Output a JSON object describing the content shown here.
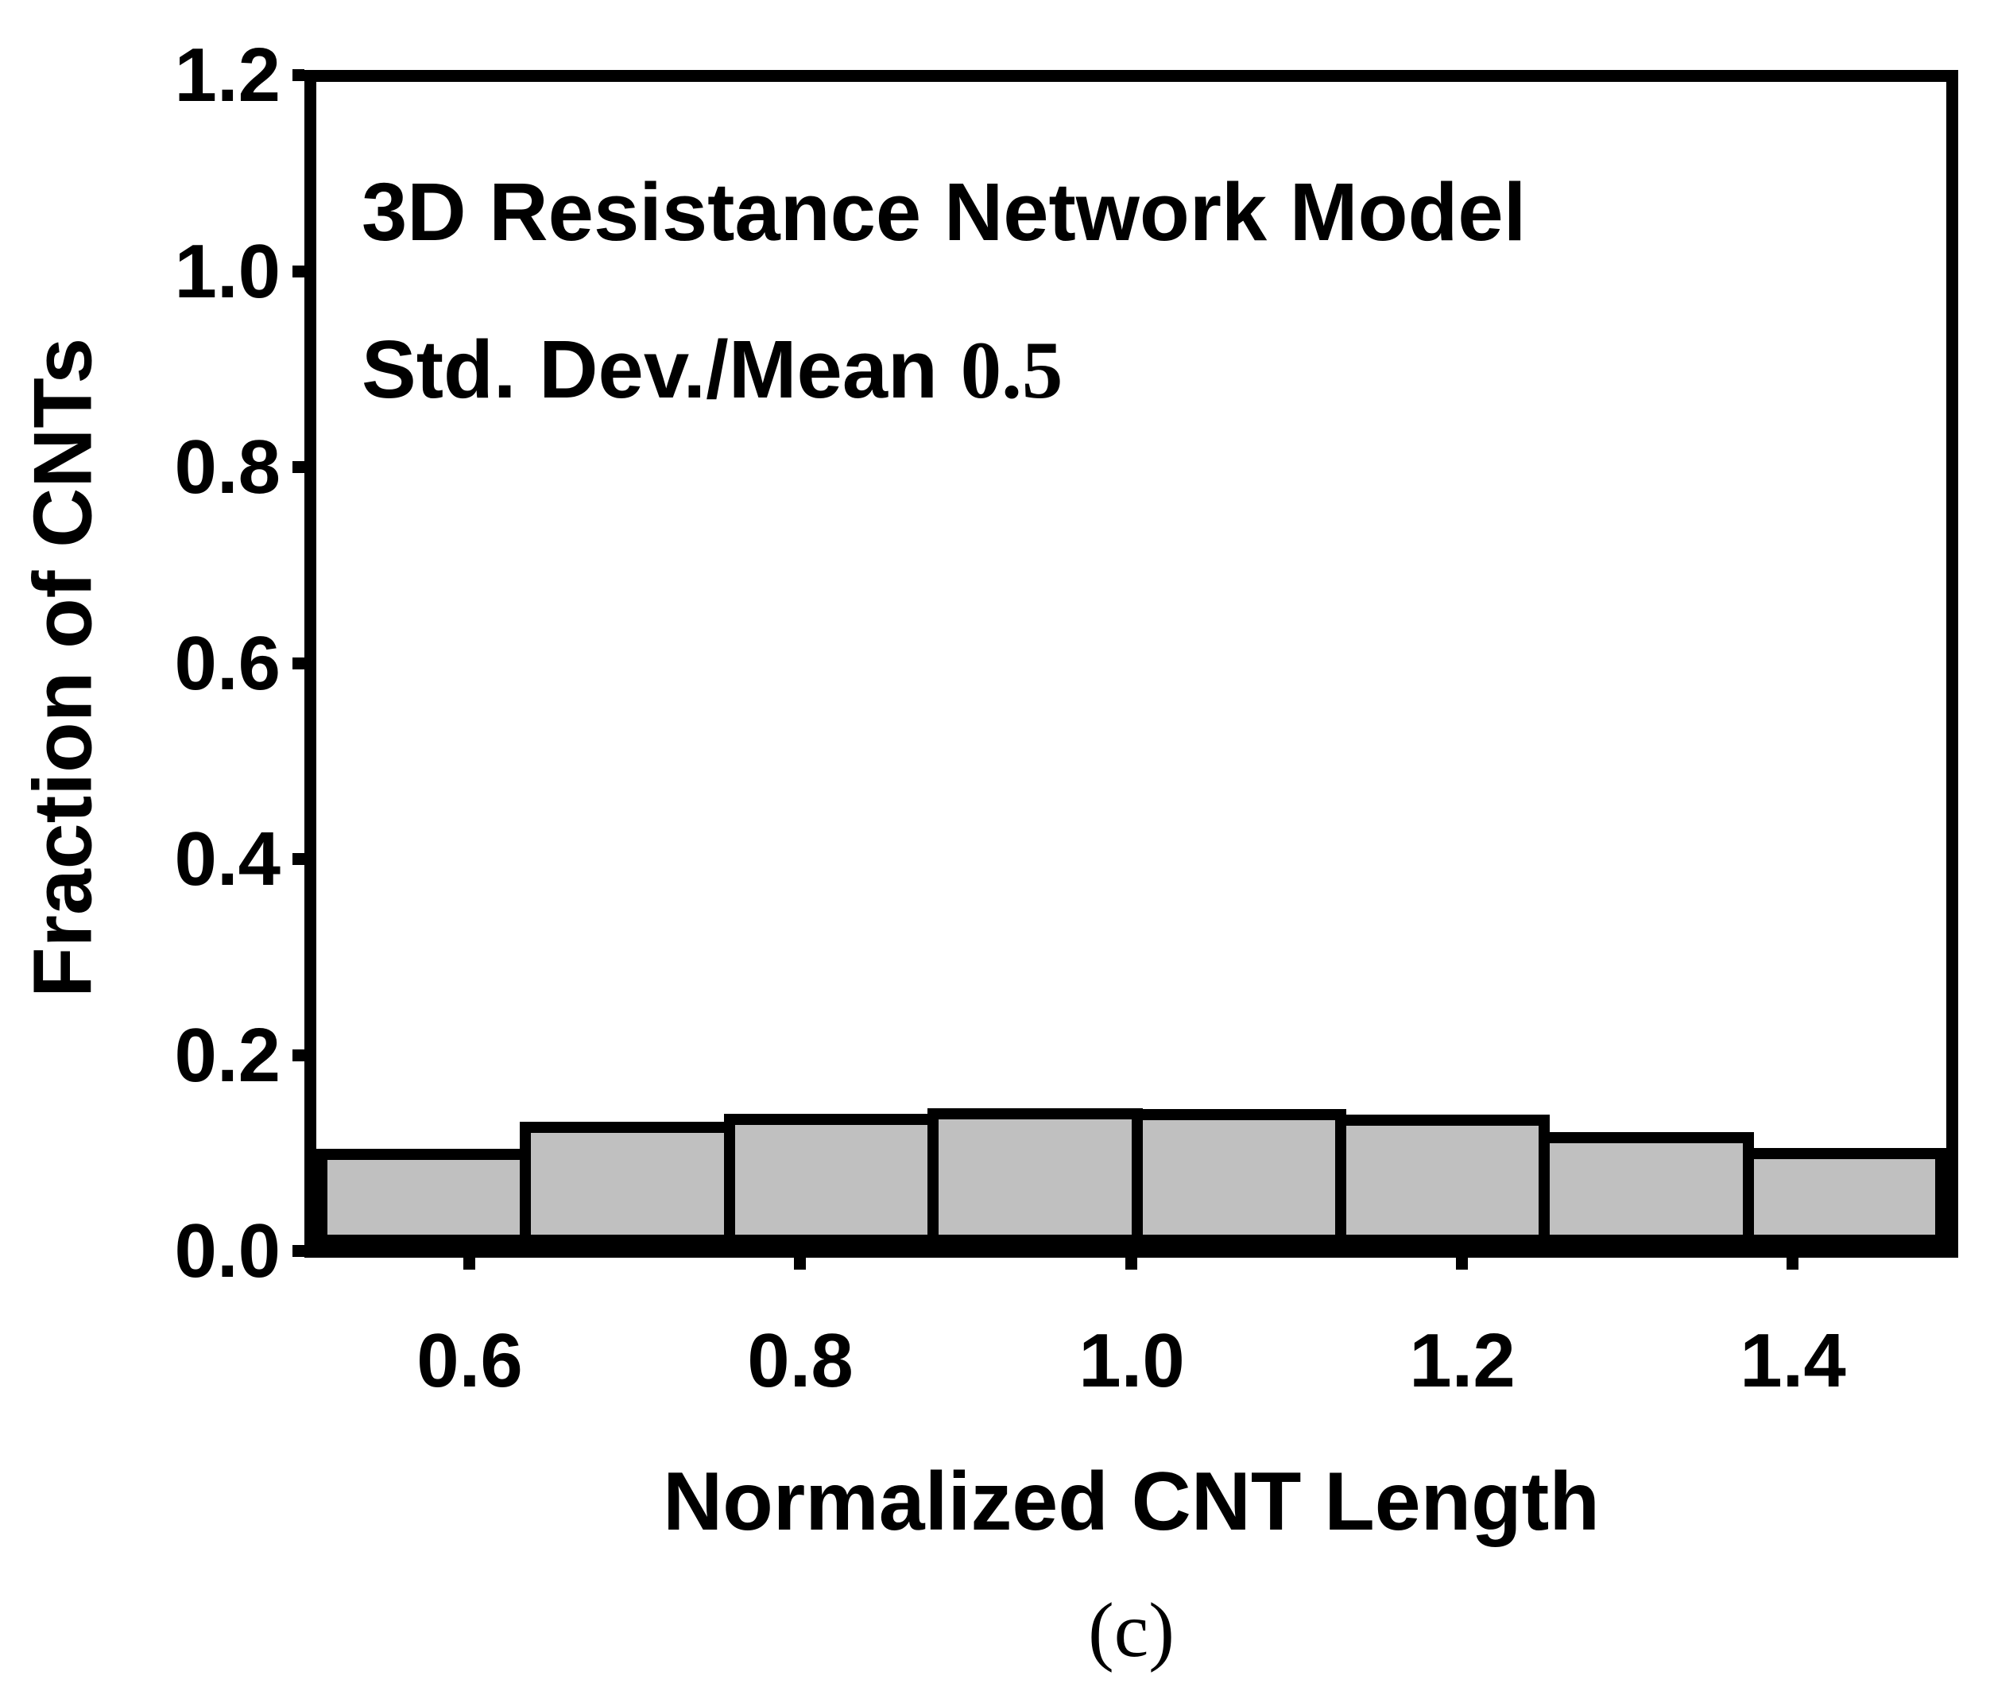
{
  "figure": {
    "caption": "(c)"
  },
  "chart_data": {
    "type": "bar",
    "subtype": "histogram",
    "annotation": {
      "line1": "3D Resistance Network Model",
      "line2_label": "Std. Dev./Mean",
      "line2_value": "0.5"
    },
    "xlabel": "Normalized CNT Length",
    "ylabel": "Fraction of CNTs",
    "xlim": [
      0.5,
      1.5
    ],
    "ylim": [
      0.0,
      1.2
    ],
    "x_ticks": [
      0.6,
      0.8,
      1.0,
      1.2,
      1.4
    ],
    "x_tick_labels": [
      "0.6",
      "0.8",
      "1.0",
      "1.2",
      "1.4"
    ],
    "y_ticks": [
      0.0,
      0.2,
      0.4,
      0.6,
      0.8,
      1.0,
      1.2
    ],
    "y_tick_labels": [
      "0.0",
      "0.2",
      "0.4",
      "0.6",
      "0.8",
      "1.0",
      "1.2"
    ],
    "bin_edges": [
      0.5,
      0.625,
      0.75,
      0.875,
      1.0,
      1.125,
      1.25,
      1.375,
      1.5
    ],
    "values": [
      0.1,
      0.128,
      0.136,
      0.142,
      0.141,
      0.135,
      0.117,
      0.101
    ],
    "bar_fill_color": "#c0c0c0",
    "bar_edge_color": "#000000",
    "axis_color": "#000000",
    "grid": false,
    "legend": "none"
  }
}
